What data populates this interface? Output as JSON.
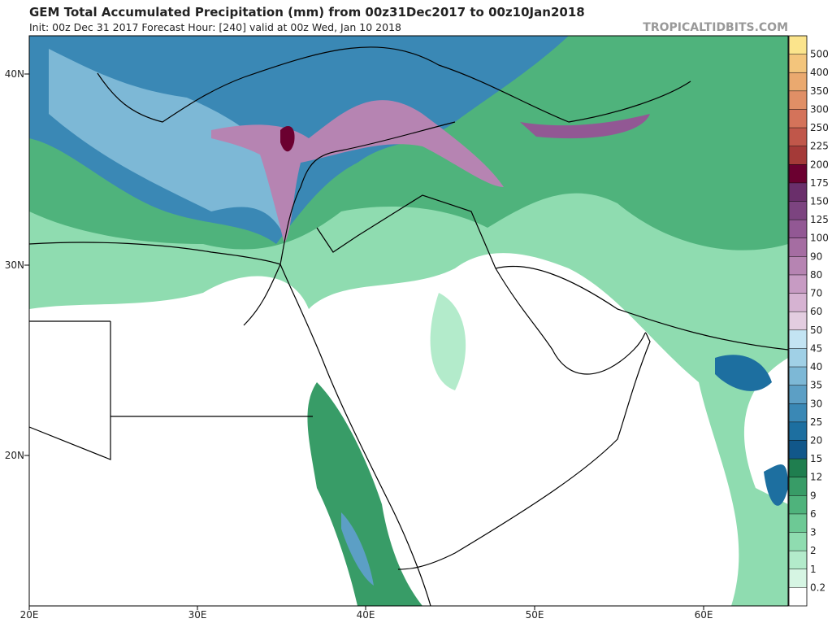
{
  "header": {
    "title": "GEM Total Accumulated Precipitation (mm) from 00z31Dec2017 to 00z10Jan2018",
    "subtitle": "Init: 00z Dec 31 2017   Forecast Hour: [240]   valid at 00z Wed, Jan 10 2018",
    "watermark": "TROPICALTIDBITS.COM"
  },
  "map": {
    "lat_labels": [
      "40N",
      "30N",
      "20N"
    ],
    "lon_labels": [
      "20E",
      "30E",
      "40E",
      "50E",
      "60E"
    ]
  },
  "colorbar": {
    "levels": [
      0.2,
      1,
      2,
      3,
      6,
      9,
      12,
      15,
      20,
      25,
      30,
      35,
      40,
      45,
      50,
      60,
      70,
      80,
      90,
      100,
      125,
      150,
      175,
      200,
      225,
      250,
      300,
      350,
      400,
      500
    ],
    "colors": [
      "#ffffff",
      "#d6f5e3",
      "#b3ebcb",
      "#8fdcb0",
      "#6dc995",
      "#4fb37c",
      "#389c67",
      "#1f7e4f",
      "#11578a",
      "#1d6fa0",
      "#3a88b5",
      "#5c9fc5",
      "#7db8d6",
      "#a0d0e6",
      "#c3e4f3",
      "#e3cde0",
      "#d6b3d2",
      "#c79bc3",
      "#b684b2",
      "#a56da2",
      "#925894",
      "#7c4480",
      "#6a2f6b",
      "#6b0030",
      "#a43a38",
      "#c0574a",
      "#d4735a",
      "#e08f66",
      "#eaa96f",
      "#f3c57c",
      "#fbe48c"
    ]
  }
}
